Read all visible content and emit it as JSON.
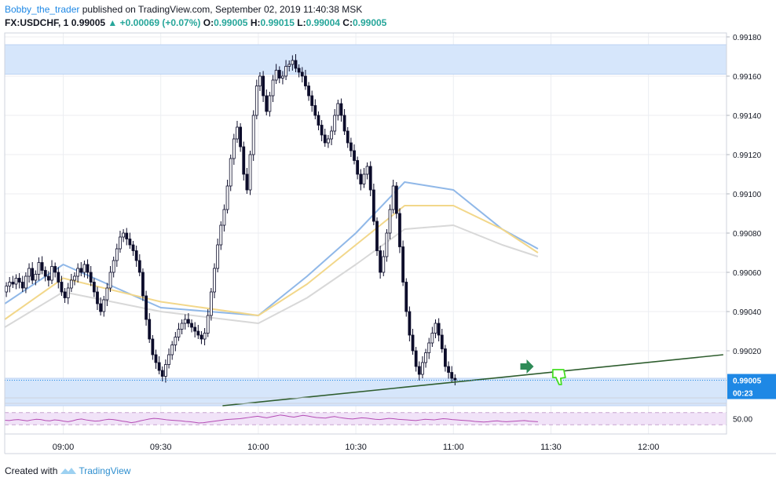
{
  "header": {
    "author": "Bobby_the_trader",
    "published": "published on TradingView.com, September 02, 2019 11:40:38 MSK",
    "symbol": "FX:USDCHF, 1",
    "last": "0.99005",
    "change": "+0.00069 (+0.07%)",
    "o_label": "O:",
    "o": "0.99005",
    "h_label": "H:",
    "h": "0.99015",
    "l_label": "L:",
    "l": "0.99004",
    "c_label": "C:",
    "c": "0.99005"
  },
  "footer": {
    "created_with": "Created with",
    "brand": "TradingView"
  },
  "colors": {
    "candle": "#0c0c2a",
    "ma_fast": "#90b8e8",
    "ma_mid": "#f2d78a",
    "ma_slow": "#d8d8d8",
    "zone": "#d6e6fb",
    "trendline": "#2e5d2e",
    "rsi_line": "#b44cb4",
    "rsi_band": "#f1e3f8",
    "price_label_bg": "#1e88e5",
    "arrow": "#2e8b57",
    "thumb": "#44dd22"
  },
  "chart_data": {
    "type": "candlestick",
    "ylim": [
      0.98996,
      0.99182
    ],
    "y_ticks": [
      "0.99180",
      "0.99160",
      "0.99140",
      "0.99120",
      "0.99100",
      "0.99080",
      "0.99060",
      "0.99040",
      "0.99020"
    ],
    "x_ticks": [
      {
        "time": "09:00",
        "min": 0
      },
      {
        "time": "09:30",
        "min": 30
      },
      {
        "time": "10:00",
        "min": 60
      },
      {
        "time": "10:30",
        "min": 90
      },
      {
        "time": "11:00",
        "min": 120
      },
      {
        "time": "11:30",
        "min": 150
      },
      {
        "time": "12:00",
        "min": 180
      }
    ],
    "x_range_minutes": [
      -18,
      204
    ],
    "last_price_label": "0.99005",
    "countdown_label": "00:23",
    "resistance_zone": [
      0.99161,
      0.99176
    ],
    "support_zone": [
      0.98992,
      0.99006
    ],
    "trendline": {
      "x1_min": 49,
      "y1": 0.98992,
      "x2_min": 203,
      "y2": 0.99018
    },
    "closes": [
      0.99053,
      0.99055,
      0.99054,
      0.99057,
      0.99055,
      0.99052,
      0.99058,
      0.99062,
      0.99056,
      0.99059,
      0.99065,
      0.99061,
      0.99058,
      0.99056,
      0.99063,
      0.9906,
      0.99055,
      0.9905,
      0.99047,
      0.99052,
      0.99056,
      0.99058,
      0.99062,
      0.9906,
      0.99064,
      0.9906,
      0.99055,
      0.9905,
      0.99044,
      0.9904,
      0.99046,
      0.99052,
      0.9906,
      0.99066,
      0.99072,
      0.99078,
      0.9908,
      0.99077,
      0.99074,
      0.99071,
      0.99066,
      0.9906,
      0.99048,
      0.99036,
      0.99026,
      0.99018,
      0.99014,
      0.9901,
      0.99007,
      0.99013,
      0.99018,
      0.99023,
      0.99027,
      0.99031,
      0.99034,
      0.99036,
      0.99034,
      0.99032,
      0.9903,
      0.99028,
      0.99026,
      0.99029,
      0.99038,
      0.9905,
      0.99062,
      0.99074,
      0.99084,
      0.99092,
      0.99104,
      0.99118,
      0.99128,
      0.99134,
      0.99124,
      0.9911,
      0.99102,
      0.9912,
      0.9914,
      0.99155,
      0.9916,
      0.9915,
      0.99142,
      0.9915,
      0.99158,
      0.99163,
      0.99159,
      0.9916,
      0.99165,
      0.99166,
      0.99168,
      0.99164,
      0.99162,
      0.9916,
      0.99155,
      0.9915,
      0.99145,
      0.9914,
      0.99135,
      0.9913,
      0.99126,
      0.99128,
      0.99132,
      0.9914,
      0.99146,
      0.9914,
      0.99132,
      0.99126,
      0.99122,
      0.99117,
      0.9911,
      0.99105,
      0.9911,
      0.99114,
      0.99102,
      0.99086,
      0.99071,
      0.9906,
      0.99068,
      0.9908,
      0.99092,
      0.99104,
      0.9909,
      0.99073,
      0.99055,
      0.9904,
      0.99028,
      0.9902,
      0.99012,
      0.99008,
      0.99014,
      0.99019,
      0.99024,
      0.99029,
      0.99034,
      0.99028,
      0.99021,
      0.99012,
      0.99009,
      0.99006,
      0.99005
    ],
    "series": [
      {
        "name": "MA fast",
        "values": [
          0.99044,
          0.99064,
          0.99042,
          0.99038,
          0.99058,
          0.9908,
          0.99106,
          0.99102,
          0.99082,
          0.99072
        ]
      },
      {
        "name": "MA mid",
        "values": [
          0.99036,
          0.99057,
          0.99045,
          0.99038,
          0.99054,
          0.99074,
          0.99094,
          0.99094,
          0.99082,
          0.9907
        ]
      },
      {
        "name": "MA slow",
        "values": [
          0.99032,
          0.9905,
          0.9904,
          0.99034,
          0.99047,
          0.99064,
          0.99082,
          0.99084,
          0.99074,
          0.99068
        ]
      }
    ],
    "ma_x_minutes": [
      -18,
      0,
      30,
      60,
      75,
      90,
      105,
      120,
      135,
      146
    ],
    "rsi": {
      "level_label": "50.00",
      "band": [
        70,
        30
      ],
      "x_min": -18,
      "x_max": 146,
      "values": [
        45,
        44,
        46,
        47,
        45,
        43,
        46,
        48,
        47,
        44,
        43,
        46,
        45,
        42,
        40,
        43,
        47,
        49,
        46,
        44,
        42,
        43,
        46,
        48,
        47,
        45,
        42,
        40,
        37,
        39,
        43,
        46,
        49,
        51,
        50,
        48,
        46,
        45,
        44,
        43,
        41,
        40,
        38,
        36,
        37,
        39,
        41,
        43,
        45,
        47,
        48,
        49,
        50,
        52,
        54,
        56,
        58,
        55,
        53,
        56,
        59,
        62,
        60,
        57,
        55,
        58,
        61,
        59,
        56,
        54,
        53,
        52,
        55,
        57,
        54,
        52,
        50,
        49,
        51,
        53,
        52,
        50,
        48,
        47,
        49,
        51,
        50,
        48,
        47,
        46,
        45,
        44,
        46,
        48,
        47,
        46,
        48,
        50,
        49,
        47,
        46,
        45,
        44,
        43,
        41,
        40,
        39,
        40,
        42,
        43,
        41,
        40,
        41,
        42,
        43,
        44,
        42,
        41,
        40
      ]
    }
  }
}
